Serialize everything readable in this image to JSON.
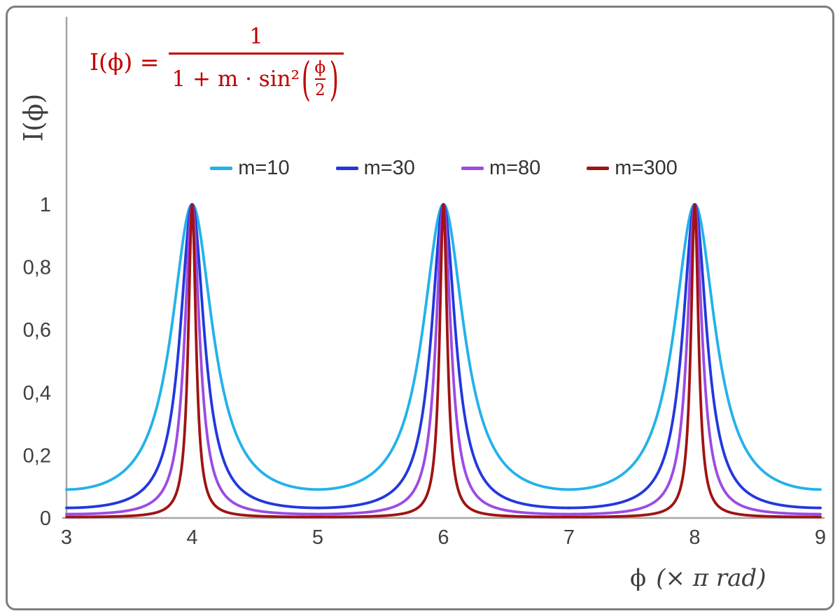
{
  "formula": {
    "lhs": "I(ϕ) =",
    "numerator": "1",
    "den_prefix": "1 + m · sin²",
    "paren_open": "(",
    "paren_close": ")",
    "inner_numerator": "ϕ",
    "inner_denominator": "2"
  },
  "axes": {
    "y_label": "I(ϕ)",
    "x_label_phi": "ϕ",
    "x_label_unit": "(× π rad)"
  },
  "styles": {
    "formula_color": "#C00000",
    "axis_color": "#A6A6A6",
    "tick_color": "#404040",
    "label_color": "#3F3F3F",
    "frame_color": "#7F7F7F"
  },
  "chart_data": {
    "type": "line",
    "title": "",
    "formula": "I(ϕ) = 1 / (1 + m·sin²(ϕ/2))",
    "xlabel": "ϕ (× π rad)",
    "ylabel": "I(ϕ)",
    "xlim": [
      3,
      9
    ],
    "ylim": [
      0,
      1
    ],
    "x_ticks": [
      "3",
      "4",
      "5",
      "6",
      "7",
      "8",
      "9"
    ],
    "y_ticks": [
      {
        "value": 0,
        "label": "0"
      },
      {
        "value": 0.2,
        "label": "0,2"
      },
      {
        "value": 0.4,
        "label": "0,4"
      },
      {
        "value": 0.6,
        "label": "0,6"
      },
      {
        "value": 0.8,
        "label": "0,8"
      },
      {
        "value": 1,
        "label": "1"
      }
    ],
    "grid": false,
    "legend_position": "top-center",
    "peaks_at_x_pi": [
      4,
      6,
      8
    ],
    "peak_value": 1,
    "series": [
      {
        "name": "m=10",
        "m": 10,
        "color": "#23B2EA",
        "value_at_x3": 0.091
      },
      {
        "name": "m=30",
        "m": 30,
        "color": "#2238DD",
        "value_at_x3": 0.032
      },
      {
        "name": "m=80",
        "m": 80,
        "color": "#9C4BE4",
        "value_at_x3": 0.012
      },
      {
        "name": "m=300",
        "m": 300,
        "color": "#A01313",
        "value_at_x3": 0.003
      }
    ]
  }
}
